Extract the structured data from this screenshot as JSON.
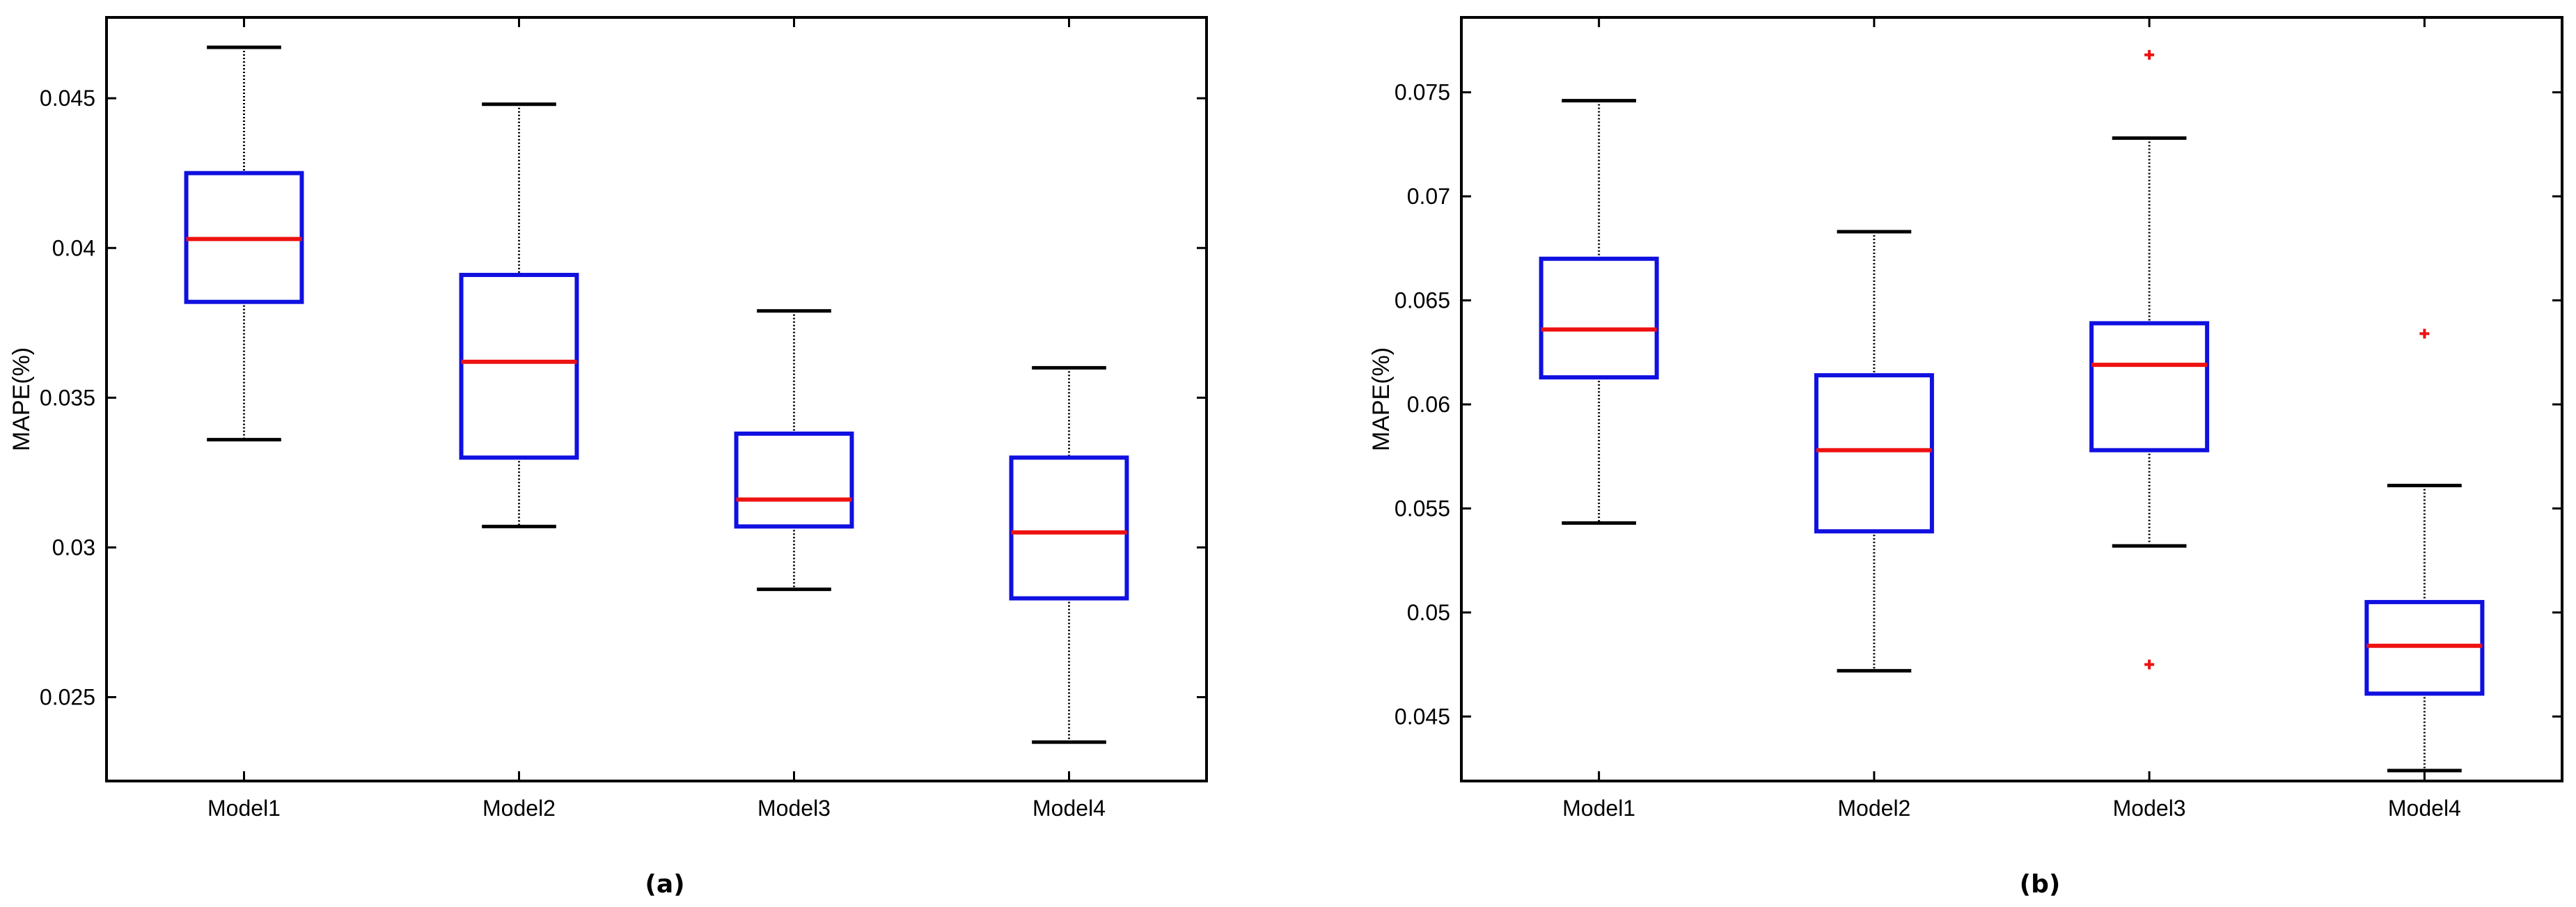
{
  "chart_data": [
    {
      "type": "box",
      "panel_label": "(a)",
      "ylabel": "MAPE(%)",
      "ylim": [
        0.0222,
        0.0477
      ],
      "yticks": [
        0.025,
        0.03,
        0.035,
        0.04,
        0.045
      ],
      "ytick_labels": [
        "0.025",
        "0.03",
        "0.035",
        "0.04",
        "0.045"
      ],
      "categories": [
        "Model1",
        "Model2",
        "Model3",
        "Model4"
      ],
      "boxes": [
        {
          "whisker_low": 0.0336,
          "q1": 0.0382,
          "median": 0.0403,
          "q3": 0.0425,
          "whisker_high": 0.0467,
          "outliers": []
        },
        {
          "whisker_low": 0.0307,
          "q1": 0.033,
          "median": 0.0362,
          "q3": 0.0391,
          "whisker_high": 0.0448,
          "outliers": []
        },
        {
          "whisker_low": 0.0286,
          "q1": 0.0307,
          "median": 0.0316,
          "q3": 0.0338,
          "whisker_high": 0.0379,
          "outliers": []
        },
        {
          "whisker_low": 0.0235,
          "q1": 0.0283,
          "median": 0.0305,
          "q3": 0.033,
          "whisker_high": 0.036,
          "outliers": []
        }
      ],
      "colors": {
        "box": "#1010e0",
        "median": "#ee1111",
        "whisker": "#000000",
        "outlier": "#ee1111"
      }
    },
    {
      "type": "box",
      "panel_label": "(b)",
      "ylabel": "MAPE(%)",
      "ylim": [
        0.0419,
        0.0786
      ],
      "yticks": [
        0.045,
        0.05,
        0.055,
        0.06,
        0.065,
        0.07,
        0.075
      ],
      "ytick_labels": [
        "0.045",
        "0.05",
        "0.055",
        "0.06",
        "0.065",
        "0.07",
        "0.075"
      ],
      "categories": [
        "Model1",
        "Model2",
        "Model3",
        "Model4"
      ],
      "boxes": [
        {
          "whisker_low": 0.0543,
          "q1": 0.0613,
          "median": 0.0636,
          "q3": 0.067,
          "whisker_high": 0.0746,
          "outliers": []
        },
        {
          "whisker_low": 0.0472,
          "q1": 0.0539,
          "median": 0.0578,
          "q3": 0.0614,
          "whisker_high": 0.0683,
          "outliers": []
        },
        {
          "whisker_low": 0.0532,
          "q1": 0.0578,
          "median": 0.0619,
          "q3": 0.0639,
          "whisker_high": 0.0728,
          "outliers": [
            0.0768,
            0.0475
          ]
        },
        {
          "whisker_low": 0.0424,
          "q1": 0.0461,
          "median": 0.0484,
          "q3": 0.0505,
          "whisker_high": 0.0561,
          "outliers": [
            0.0634
          ]
        }
      ],
      "colors": {
        "box": "#1010e0",
        "median": "#ee1111",
        "whisker": "#000000",
        "outlier": "#ee1111"
      }
    }
  ]
}
